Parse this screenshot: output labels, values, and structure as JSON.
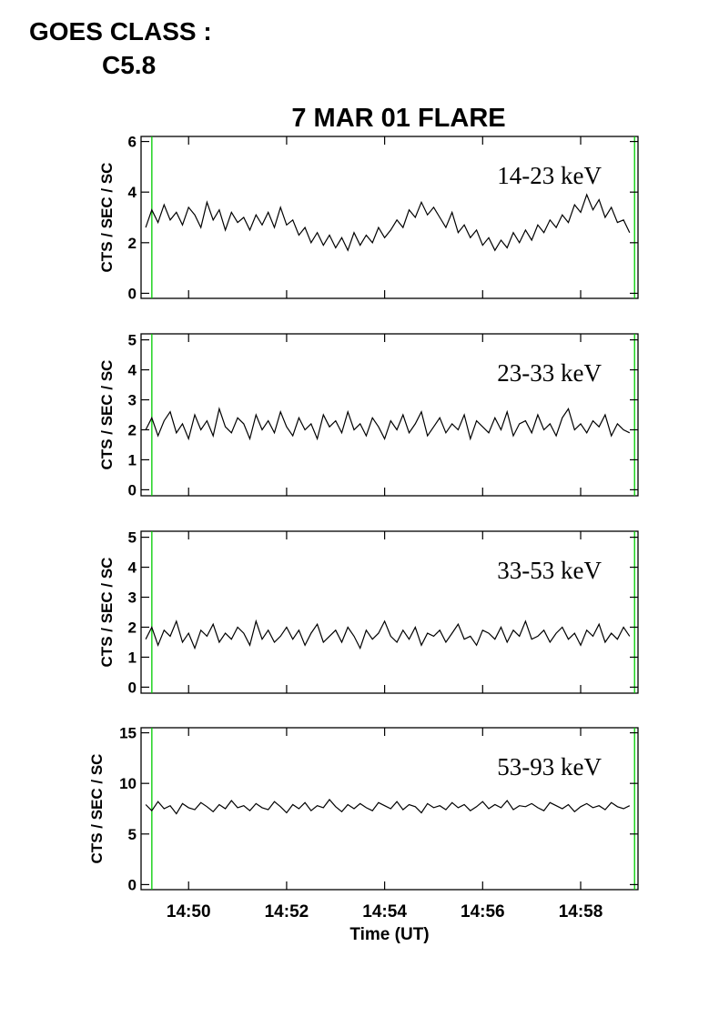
{
  "header": {
    "goes_label": "GOES CLASS :",
    "goes_class": "C5.8"
  },
  "chart_data": [
    {
      "type": "line",
      "title": "7 MAR 01 FLARE",
      "ylabel": "CTS / SEC / SC",
      "annotation": "14-23 keV",
      "xlim": [
        49.03,
        59.17
      ],
      "xticks": [
        50,
        52,
        54,
        56,
        58
      ],
      "ylim": [
        -0.2,
        6.2
      ],
      "yticks": [
        0,
        2,
        4,
        6
      ],
      "vlines": [
        49.25,
        59.1
      ],
      "vline_color": "#00cc00",
      "series": [
        {
          "color": "#000000",
          "x": [
            49.125,
            49.25,
            49.375,
            49.5,
            49.625,
            49.75,
            49.875,
            50,
            50.125,
            50.25,
            50.375,
            50.5,
            50.625,
            50.75,
            50.875,
            51,
            51.125,
            51.25,
            51.375,
            51.5,
            51.625,
            51.75,
            51.875,
            52,
            52.125,
            52.25,
            52.375,
            52.5,
            52.625,
            52.75,
            52.875,
            53,
            53.125,
            53.25,
            53.375,
            53.5,
            53.625,
            53.75,
            53.875,
            54,
            54.125,
            54.25,
            54.375,
            54.5,
            54.625,
            54.75,
            54.875,
            55,
            55.125,
            55.25,
            55.375,
            55.5,
            55.625,
            55.75,
            55.875,
            56,
            56.125,
            56.25,
            56.375,
            56.5,
            56.625,
            56.75,
            56.875,
            57,
            57.125,
            57.25,
            57.375,
            57.5,
            57.625,
            57.75,
            57.875,
            58,
            58.125,
            58.25,
            58.375,
            58.5,
            58.625,
            58.75,
            58.875,
            59
          ],
          "values": [
            2.6,
            3.3,
            2.8,
            3.5,
            2.9,
            3.2,
            2.7,
            3.4,
            3.1,
            2.6,
            3.6,
            2.9,
            3.3,
            2.5,
            3.2,
            2.8,
            3.0,
            2.5,
            3.1,
            2.7,
            3.2,
            2.6,
            3.4,
            2.7,
            2.9,
            2.3,
            2.6,
            2.0,
            2.4,
            1.9,
            2.3,
            1.8,
            2.2,
            1.7,
            2.4,
            1.9,
            2.3,
            2.0,
            2.6,
            2.2,
            2.5,
            2.9,
            2.6,
            3.3,
            3.0,
            3.6,
            3.1,
            3.4,
            3.0,
            2.6,
            3.2,
            2.4,
            2.7,
            2.2,
            2.5,
            1.9,
            2.2,
            1.7,
            2.1,
            1.8,
            2.4,
            2.0,
            2.5,
            2.1,
            2.7,
            2.4,
            2.9,
            2.6,
            3.1,
            2.8,
            3.5,
            3.2,
            3.9,
            3.3,
            3.7,
            3.0,
            3.4,
            2.8,
            2.9,
            2.4
          ]
        }
      ]
    },
    {
      "type": "line",
      "ylabel": "CTS / SEC / SC",
      "annotation": "23-33 keV",
      "xlim": [
        49.03,
        59.17
      ],
      "xticks": [
        50,
        52,
        54,
        56,
        58
      ],
      "ylim": [
        -0.2,
        5.2
      ],
      "yticks": [
        0,
        1,
        2,
        3,
        4,
        5
      ],
      "vlines": [
        49.25,
        59.1
      ],
      "vline_color": "#00cc00",
      "series": [
        {
          "color": "#000000",
          "x": [
            49.125,
            49.25,
            49.375,
            49.5,
            49.625,
            49.75,
            49.875,
            50,
            50.125,
            50.25,
            50.375,
            50.5,
            50.625,
            50.75,
            50.875,
            51,
            51.125,
            51.25,
            51.375,
            51.5,
            51.625,
            51.75,
            51.875,
            52,
            52.125,
            52.25,
            52.375,
            52.5,
            52.625,
            52.75,
            52.875,
            53,
            53.125,
            53.25,
            53.375,
            53.5,
            53.625,
            53.75,
            53.875,
            54,
            54.125,
            54.25,
            54.375,
            54.5,
            54.625,
            54.75,
            54.875,
            55,
            55.125,
            55.25,
            55.375,
            55.5,
            55.625,
            55.75,
            55.875,
            56,
            56.125,
            56.25,
            56.375,
            56.5,
            56.625,
            56.75,
            56.875,
            57,
            57.125,
            57.25,
            57.375,
            57.5,
            57.625,
            57.75,
            57.875,
            58,
            58.125,
            58.25,
            58.375,
            58.5,
            58.625,
            58.75,
            58.875,
            59
          ],
          "values": [
            2.0,
            2.4,
            1.8,
            2.3,
            2.6,
            1.9,
            2.2,
            1.7,
            2.5,
            2.0,
            2.3,
            1.8,
            2.7,
            2.1,
            1.9,
            2.4,
            2.2,
            1.7,
            2.5,
            2.0,
            2.3,
            1.9,
            2.6,
            2.1,
            1.8,
            2.4,
            2.0,
            2.2,
            1.7,
            2.5,
            2.1,
            2.3,
            1.9,
            2.6,
            2.0,
            2.2,
            1.8,
            2.4,
            2.1,
            1.7,
            2.3,
            2.0,
            2.5,
            1.9,
            2.2,
            2.6,
            1.8,
            2.1,
            2.4,
            1.9,
            2.2,
            2.0,
            2.5,
            1.7,
            2.3,
            2.1,
            1.9,
            2.4,
            2.0,
            2.6,
            1.8,
            2.2,
            2.3,
            1.9,
            2.5,
            2.0,
            2.2,
            1.8,
            2.4,
            2.7,
            2.0,
            2.2,
            1.9,
            2.3,
            2.1,
            2.5,
            1.8,
            2.2,
            2.0,
            1.9
          ]
        }
      ]
    },
    {
      "type": "line",
      "ylabel": "CTS / SEC / SC",
      "annotation": "33-53 keV",
      "xlim": [
        49.03,
        59.17
      ],
      "xticks": [
        50,
        52,
        54,
        56,
        58
      ],
      "ylim": [
        -0.2,
        5.2
      ],
      "yticks": [
        0,
        1,
        2,
        3,
        4,
        5
      ],
      "vlines": [
        49.25,
        59.1
      ],
      "vline_color": "#00cc00",
      "series": [
        {
          "color": "#000000",
          "x": [
            49.125,
            49.25,
            49.375,
            49.5,
            49.625,
            49.75,
            49.875,
            50,
            50.125,
            50.25,
            50.375,
            50.5,
            50.625,
            50.75,
            50.875,
            51,
            51.125,
            51.25,
            51.375,
            51.5,
            51.625,
            51.75,
            51.875,
            52,
            52.125,
            52.25,
            52.375,
            52.5,
            52.625,
            52.75,
            52.875,
            53,
            53.125,
            53.25,
            53.375,
            53.5,
            53.625,
            53.75,
            53.875,
            54,
            54.125,
            54.25,
            54.375,
            54.5,
            54.625,
            54.75,
            54.875,
            55,
            55.125,
            55.25,
            55.375,
            55.5,
            55.625,
            55.75,
            55.875,
            56,
            56.125,
            56.25,
            56.375,
            56.5,
            56.625,
            56.75,
            56.875,
            57,
            57.125,
            57.25,
            57.375,
            57.5,
            57.625,
            57.75,
            57.875,
            58,
            58.125,
            58.25,
            58.375,
            58.5,
            58.625,
            58.75,
            58.875,
            59
          ],
          "values": [
            1.6,
            2.0,
            1.4,
            1.9,
            1.7,
            2.2,
            1.5,
            1.8,
            1.3,
            1.9,
            1.7,
            2.1,
            1.5,
            1.8,
            1.6,
            2.0,
            1.8,
            1.4,
            2.2,
            1.6,
            1.9,
            1.5,
            1.7,
            2.0,
            1.6,
            1.9,
            1.4,
            1.8,
            2.1,
            1.5,
            1.7,
            1.9,
            1.5,
            2.0,
            1.7,
            1.3,
            1.9,
            1.6,
            1.8,
            2.2,
            1.7,
            1.5,
            1.9,
            1.6,
            2.0,
            1.4,
            1.8,
            1.7,
            1.9,
            1.5,
            1.8,
            2.1,
            1.6,
            1.7,
            1.4,
            1.9,
            1.8,
            1.6,
            2.0,
            1.5,
            1.9,
            1.7,
            2.2,
            1.6,
            1.7,
            1.9,
            1.5,
            1.8,
            2.0,
            1.6,
            1.8,
            1.4,
            1.9,
            1.7,
            2.1,
            1.5,
            1.8,
            1.6,
            2.0,
            1.7
          ]
        }
      ]
    },
    {
      "type": "line",
      "ylabel": "CTS / SEC / SC",
      "xlabel": "Time (UT)",
      "annotation": "53-93 keV",
      "xlim": [
        49.03,
        59.17
      ],
      "xticks": [
        {
          "value": 50,
          "label": "14:50"
        },
        {
          "value": 52,
          "label": "14:52"
        },
        {
          "value": 54,
          "label": "14:54"
        },
        {
          "value": 56,
          "label": "14:56"
        },
        {
          "value": 58,
          "label": "14:58"
        }
      ],
      "ylim": [
        -0.5,
        15.5
      ],
      "yticks": [
        0,
        5,
        10,
        15
      ],
      "vlines": [
        49.25,
        59.1
      ],
      "vline_color": "#00cc00",
      "series": [
        {
          "color": "#000000",
          "x": [
            49.125,
            49.25,
            49.375,
            49.5,
            49.625,
            49.75,
            49.875,
            50,
            50.125,
            50.25,
            50.375,
            50.5,
            50.625,
            50.75,
            50.875,
            51,
            51.125,
            51.25,
            51.375,
            51.5,
            51.625,
            51.75,
            51.875,
            52,
            52.125,
            52.25,
            52.375,
            52.5,
            52.625,
            52.75,
            52.875,
            53,
            53.125,
            53.25,
            53.375,
            53.5,
            53.625,
            53.75,
            53.875,
            54,
            54.125,
            54.25,
            54.375,
            54.5,
            54.625,
            54.75,
            54.875,
            55,
            55.125,
            55.25,
            55.375,
            55.5,
            55.625,
            55.75,
            55.875,
            56,
            56.125,
            56.25,
            56.375,
            56.5,
            56.625,
            56.75,
            56.875,
            57,
            57.125,
            57.25,
            57.375,
            57.5,
            57.625,
            57.75,
            57.875,
            58,
            58.125,
            58.25,
            58.375,
            58.5,
            58.625,
            58.75,
            58.875,
            59
          ],
          "values": [
            7.9,
            7.3,
            8.2,
            7.5,
            7.8,
            7.0,
            8.0,
            7.6,
            7.4,
            8.1,
            7.7,
            7.2,
            7.9,
            7.5,
            8.3,
            7.6,
            7.8,
            7.3,
            8.0,
            7.6,
            7.4,
            8.2,
            7.7,
            7.1,
            7.9,
            7.5,
            8.1,
            7.3,
            7.8,
            7.6,
            8.4,
            7.7,
            7.2,
            7.9,
            7.5,
            8.0,
            7.6,
            7.3,
            8.1,
            7.8,
            7.5,
            8.2,
            7.4,
            7.9,
            7.7,
            7.1,
            8.0,
            7.6,
            7.8,
            7.4,
            8.1,
            7.6,
            7.9,
            7.3,
            7.7,
            8.2,
            7.5,
            7.9,
            7.6,
            8.3,
            7.4,
            7.8,
            7.7,
            8.0,
            7.6,
            7.3,
            8.1,
            7.8,
            7.5,
            7.9,
            7.2,
            7.7,
            8.0,
            7.6,
            7.8,
            7.4,
            8.1,
            7.7,
            7.5,
            7.8
          ]
        }
      ]
    }
  ]
}
